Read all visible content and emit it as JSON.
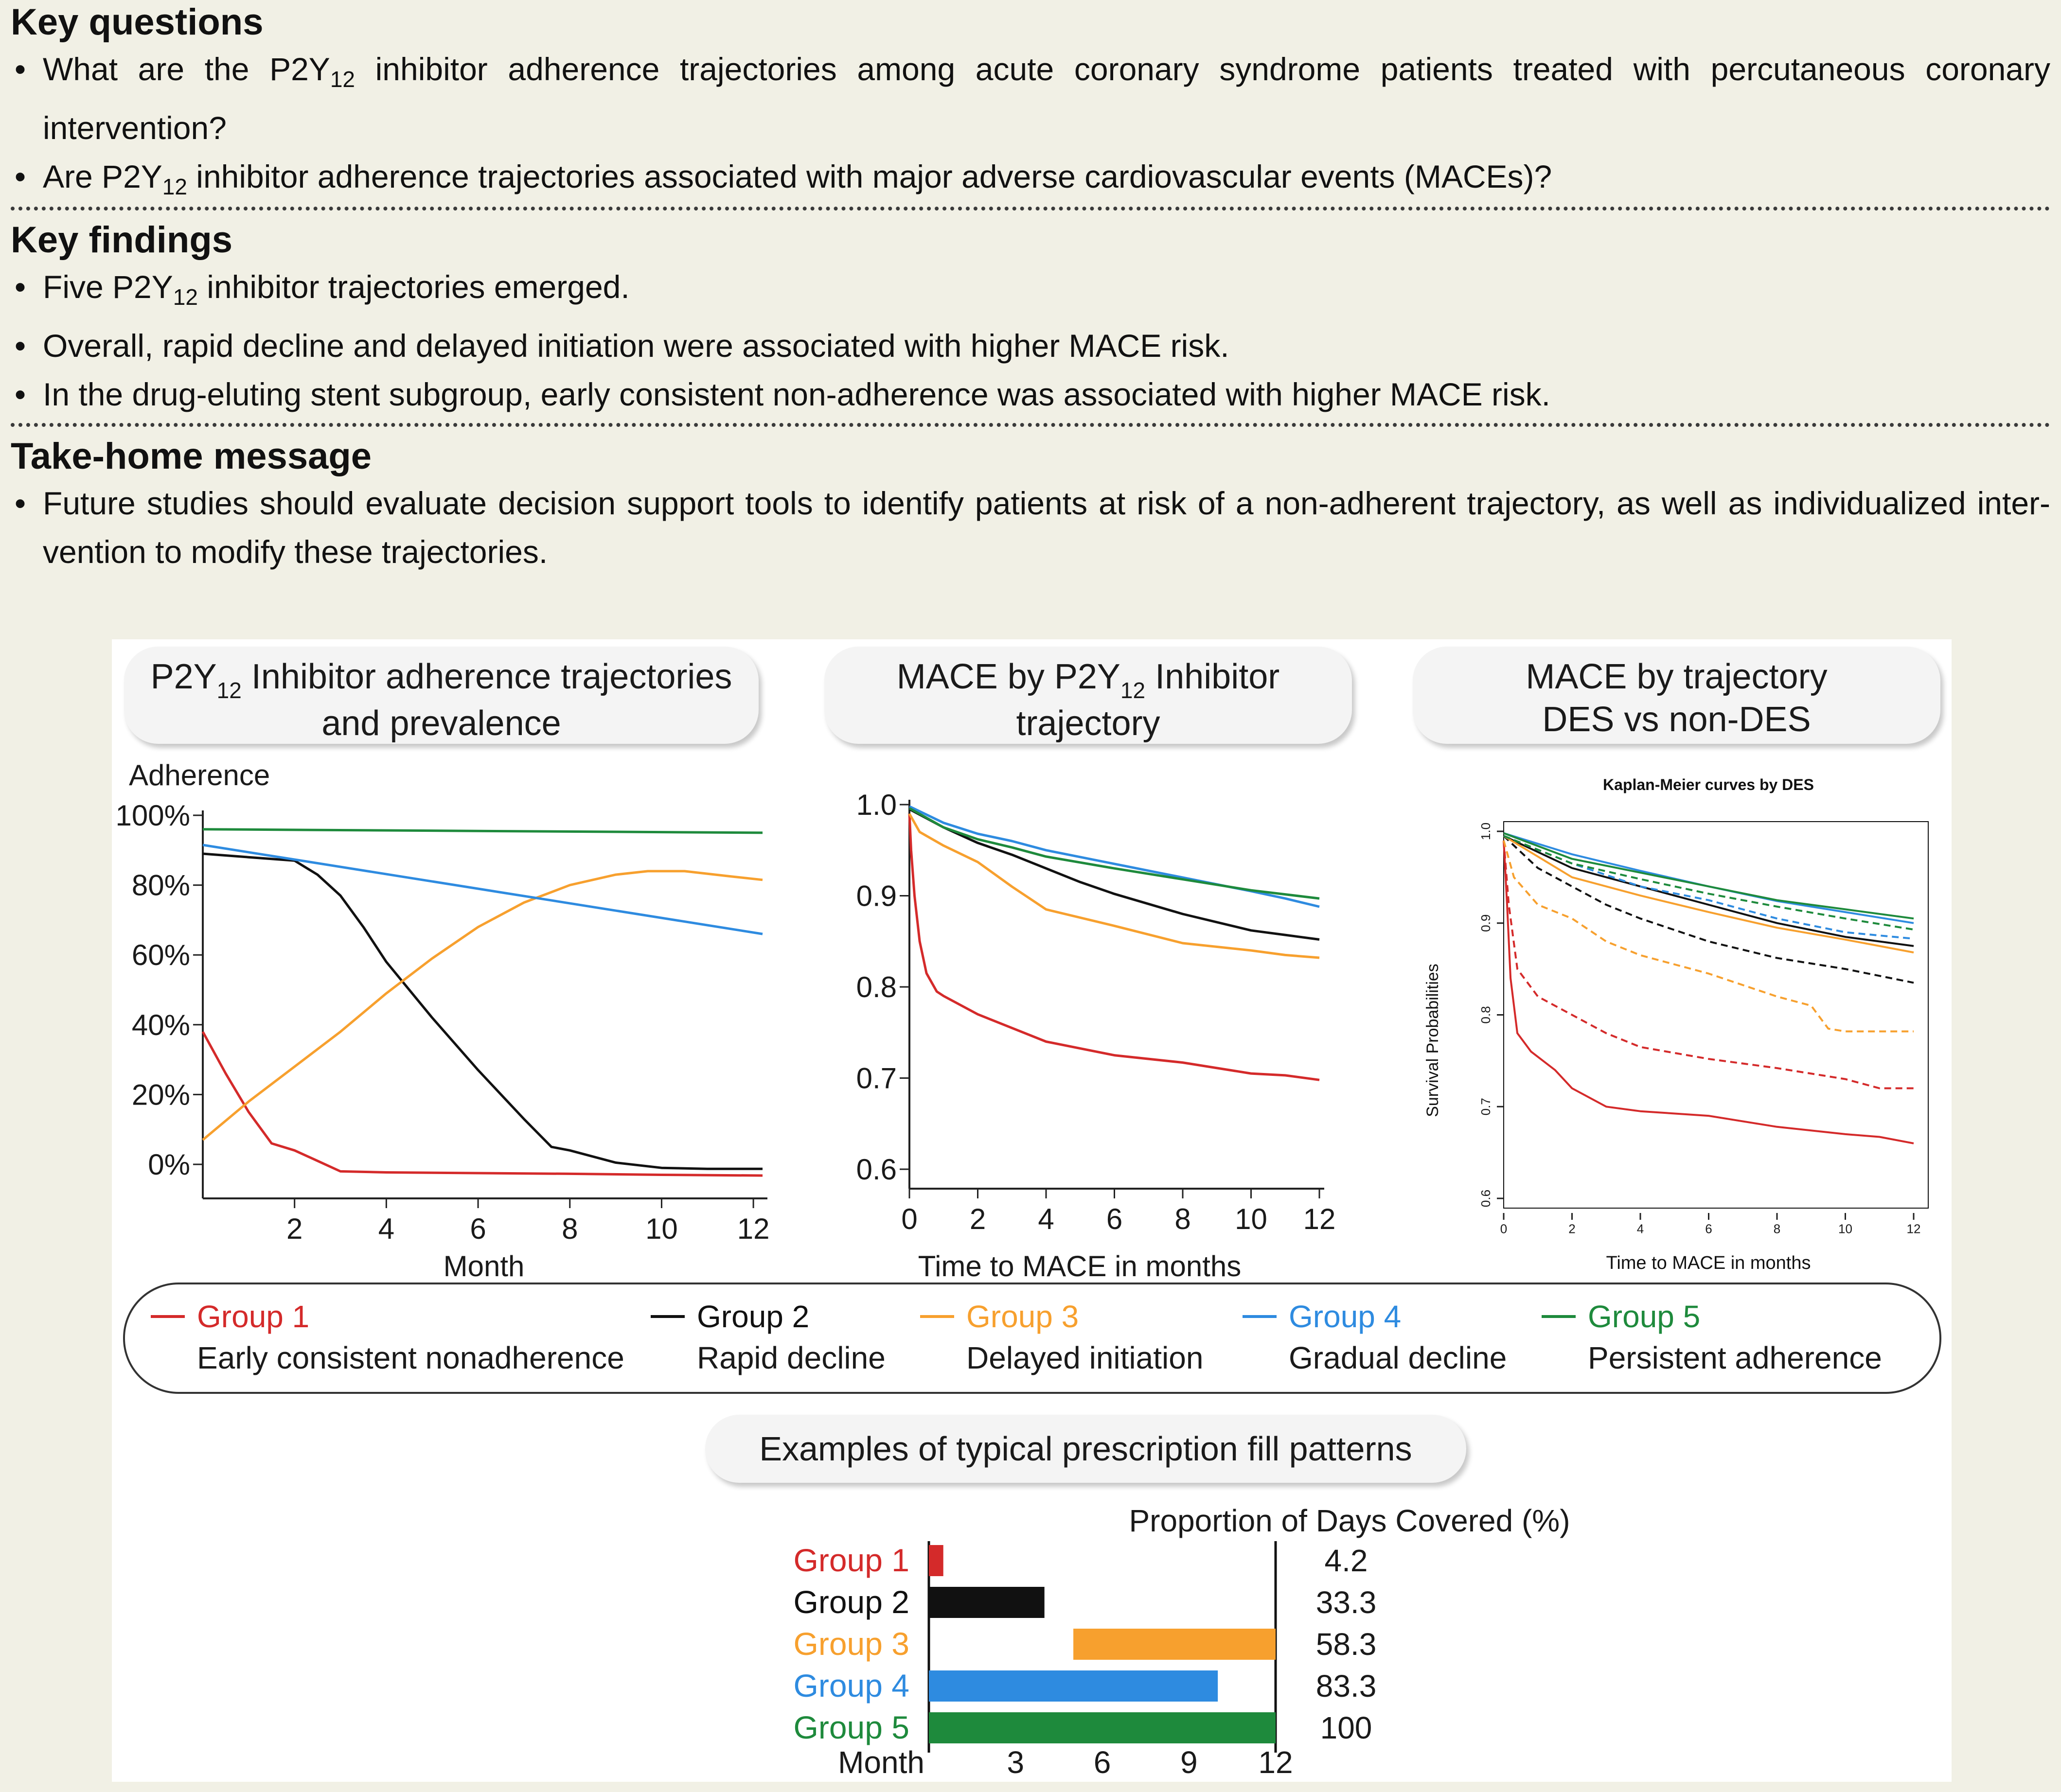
{
  "summary": {
    "key_questions": {
      "title": "Key questions",
      "bullets": [
        {
          "pre": "What are the P2Y",
          "sub": "12",
          "post": " inhibitor adherence trajectories among acute coronary syndrome patients treated with percutaneous coronary intervention?"
        },
        {
          "pre": "Are P2Y",
          "sub": "12",
          "post": " inhibitor adherence trajectories associated with major adverse cardiovascular events (MACEs)?"
        }
      ]
    },
    "key_findings": {
      "title": "Key findings",
      "bullets": [
        {
          "pre": "Five P2Y",
          "sub": "12",
          "post": " inhibitor trajectories emerged."
        },
        {
          "pre": "Overall, rapid decline and delayed initiation were associated with higher MACE risk.",
          "sub": "",
          "post": ""
        },
        {
          "pre": "In the drug-eluting stent subgroup, early consistent non-adherence was associated with higher MACE risk.",
          "sub": "",
          "post": ""
        }
      ]
    },
    "take_home": {
      "title": "Take-home message",
      "bullets": [
        {
          "pre": "Future studies should evaluate decision support tools to identify patients at risk of a non-adherent trajectory, as well as individualized inter-vention to modify these trajectories.",
          "sub": "",
          "post": ""
        }
      ]
    }
  },
  "panels": {
    "p1": {
      "pre": "P2Y",
      "sub": "12",
      "line1_post": " Inhibitor adherence trajectories",
      "line2": "and prevalence"
    },
    "p2": {
      "pre": "MACE by P2Y",
      "sub": "12",
      "line1_post": " Inhibitor",
      "line2": "trajectory"
    },
    "p3": {
      "line1": "MACE by trajectory",
      "line2": "DES vs non-DES"
    },
    "fill_title": "Examples of typical prescription fill patterns"
  },
  "colors": {
    "g1": "#d42a2a",
    "g2": "#111111",
    "g3": "#f7a02e",
    "g4": "#2e8be0",
    "g5": "#1e8a3c"
  },
  "legend": [
    {
      "group": "Group 1",
      "desc": "Early consistent nonadherence",
      "color": "#d42a2a"
    },
    {
      "group": "Group 2",
      "desc": "Rapid decline",
      "color": "#111111"
    },
    {
      "group": "Group 3",
      "desc": "Delayed initiation",
      "color": "#f7a02e"
    },
    {
      "group": "Group 4",
      "desc": "Gradual decline",
      "color": "#2e8be0"
    },
    {
      "group": "Group 5",
      "desc": "Persistent adherence",
      "color": "#1e8a3c"
    }
  ],
  "chart_data": [
    {
      "type": "line",
      "ylabel": "Adherence",
      "xlabel": "Month",
      "xlim": [
        0,
        12.2
      ],
      "ylim": [
        0,
        100
      ],
      "xticks": [
        2,
        4,
        6,
        8,
        10,
        12
      ],
      "yticks": [
        0,
        20,
        40,
        60,
        80,
        100
      ],
      "ytick_labels": [
        "0%",
        "20%",
        "40%",
        "60%",
        "80%",
        "100%"
      ],
      "series": [
        {
          "name": "Group 1",
          "color": "#d42a2a",
          "points": [
            [
              0,
              38
            ],
            [
              0.5,
              26
            ],
            [
              1,
              15
            ],
            [
              1.5,
              6
            ],
            [
              2,
              4
            ],
            [
              2.5,
              1
            ],
            [
              3,
              -2
            ],
            [
              4,
              -2.3
            ],
            [
              6,
              -2.5
            ],
            [
              8,
              -2.7
            ],
            [
              10,
              -3
            ],
            [
              12.2,
              -3.2
            ]
          ]
        },
        {
          "name": "Group 2",
          "color": "#111111",
          "points": [
            [
              0,
              89
            ],
            [
              1,
              88
            ],
            [
              2,
              87
            ],
            [
              2.5,
              83
            ],
            [
              3,
              77
            ],
            [
              3.5,
              68
            ],
            [
              4,
              58
            ],
            [
              5,
              42
            ],
            [
              6,
              27
            ],
            [
              7,
              13
            ],
            [
              7.6,
              5
            ],
            [
              8,
              4
            ],
            [
              9,
              0.5
            ],
            [
              10,
              -1
            ],
            [
              11,
              -1.3
            ],
            [
              12.2,
              -1.3
            ]
          ]
        },
        {
          "name": "Group 3",
          "color": "#f7a02e",
          "points": [
            [
              0,
              7
            ],
            [
              1,
              18
            ],
            [
              2,
              28
            ],
            [
              3,
              38
            ],
            [
              4,
              49
            ],
            [
              5,
              59
            ],
            [
              6,
              68
            ],
            [
              7,
              75
            ],
            [
              8,
              80
            ],
            [
              9,
              83
            ],
            [
              9.7,
              84
            ],
            [
              10.5,
              84
            ],
            [
              11.5,
              82.5
            ],
            [
              12.2,
              81.5
            ]
          ]
        },
        {
          "name": "Group 4",
          "color": "#2e8be0",
          "points": [
            [
              0,
              91.5
            ],
            [
              12.2,
              66
            ]
          ]
        },
        {
          "name": "Group 5",
          "color": "#1e8a3c",
          "points": [
            [
              0,
              96
            ],
            [
              12.2,
              95
            ]
          ]
        }
      ]
    },
    {
      "type": "line",
      "xlabel": "Time to MACE in months",
      "xlim": [
        0,
        12
      ],
      "ylim": [
        0.6,
        1.0
      ],
      "xticks": [
        0,
        2,
        4,
        6,
        8,
        10,
        12
      ],
      "yticks": [
        0.6,
        0.7,
        0.8,
        0.9,
        1.0
      ],
      "ytick_labels": [
        "0.6",
        "0.7",
        "0.8",
        "0.9",
        "1.0"
      ],
      "series": [
        {
          "name": "Group 1",
          "color": "#d42a2a",
          "points": [
            [
              0,
              0.99
            ],
            [
              0.05,
              0.95
            ],
            [
              0.15,
              0.9
            ],
            [
              0.3,
              0.85
            ],
            [
              0.5,
              0.815
            ],
            [
              0.8,
              0.795
            ],
            [
              1,
              0.79
            ],
            [
              2,
              0.77
            ],
            [
              3,
              0.755
            ],
            [
              4,
              0.74
            ],
            [
              6,
              0.725
            ],
            [
              8,
              0.717
            ],
            [
              10,
              0.705
            ],
            [
              11,
              0.703
            ],
            [
              12,
              0.698
            ]
          ]
        },
        {
          "name": "Group 2",
          "color": "#111111",
          "points": [
            [
              0,
              0.995
            ],
            [
              1,
              0.975
            ],
            [
              2,
              0.958
            ],
            [
              3,
              0.945
            ],
            [
              4,
              0.93
            ],
            [
              5,
              0.915
            ],
            [
              6,
              0.902
            ],
            [
              8,
              0.88
            ],
            [
              10,
              0.862
            ],
            [
              11,
              0.857
            ],
            [
              12,
              0.852
            ]
          ]
        },
        {
          "name": "Group 3",
          "color": "#f7a02e",
          "points": [
            [
              0,
              0.99
            ],
            [
              0.3,
              0.97
            ],
            [
              1,
              0.955
            ],
            [
              2,
              0.937
            ],
            [
              3,
              0.91
            ],
            [
              4,
              0.885
            ],
            [
              6,
              0.867
            ],
            [
              8,
              0.848
            ],
            [
              10,
              0.84
            ],
            [
              11,
              0.835
            ],
            [
              12,
              0.832
            ]
          ]
        },
        {
          "name": "Group 4",
          "color": "#2e8be0",
          "points": [
            [
              0,
              0.998
            ],
            [
              1,
              0.98
            ],
            [
              2,
              0.968
            ],
            [
              3,
              0.96
            ],
            [
              4,
              0.95
            ],
            [
              6,
              0.935
            ],
            [
              8,
              0.92
            ],
            [
              10,
              0.905
            ],
            [
              11,
              0.897
            ],
            [
              12,
              0.888
            ]
          ]
        },
        {
          "name": "Group 5",
          "color": "#1e8a3c",
          "points": [
            [
              0,
              0.996
            ],
            [
              1,
              0.975
            ],
            [
              2,
              0.962
            ],
            [
              3,
              0.953
            ],
            [
              4,
              0.943
            ],
            [
              6,
              0.93
            ],
            [
              8,
              0.918
            ],
            [
              10,
              0.906
            ],
            [
              12,
              0.897
            ]
          ]
        }
      ]
    },
    {
      "type": "line",
      "title": "Kaplan-Meier curves by DES",
      "xlabel": "Time to MACE in months",
      "ylabel": "Survival Probabilities",
      "xlim": [
        0,
        12
      ],
      "ylim": [
        0.6,
        1.0
      ],
      "xticks": [
        0,
        2,
        4,
        6,
        8,
        10,
        12
      ],
      "yticks": [
        0.6,
        0.7,
        0.8,
        0.9,
        1.0
      ],
      "ytick_labels": [
        "0.6",
        "0.7",
        "0.8",
        "0.9",
        "1.0"
      ],
      "series": [
        {
          "color": "#d42a2a",
          "dashed": false,
          "points": [
            [
              0,
              0.99
            ],
            [
              0.1,
              0.92
            ],
            [
              0.2,
              0.84
            ],
            [
              0.4,
              0.78
            ],
            [
              0.8,
              0.76
            ],
            [
              1.5,
              0.74
            ],
            [
              2,
              0.72
            ],
            [
              3,
              0.7
            ],
            [
              4,
              0.695
            ],
            [
              6,
              0.69
            ],
            [
              8,
              0.678
            ],
            [
              10,
              0.67
            ],
            [
              11,
              0.667
            ],
            [
              12,
              0.66
            ]
          ]
        },
        {
          "color": "#d42a2a",
          "dashed": true,
          "points": [
            [
              0,
              0.99
            ],
            [
              0.15,
              0.92
            ],
            [
              0.4,
              0.85
            ],
            [
              1,
              0.82
            ],
            [
              2,
              0.8
            ],
            [
              3,
              0.78
            ],
            [
              4,
              0.765
            ],
            [
              6,
              0.752
            ],
            [
              8,
              0.742
            ],
            [
              10,
              0.73
            ],
            [
              11,
              0.72
            ],
            [
              12,
              0.72
            ]
          ]
        },
        {
          "color": "#111111",
          "dashed": false,
          "points": [
            [
              0,
              0.995
            ],
            [
              2,
              0.96
            ],
            [
              4,
              0.94
            ],
            [
              6,
              0.92
            ],
            [
              8,
              0.9
            ],
            [
              10,
              0.885
            ],
            [
              11,
              0.88
            ],
            [
              12,
              0.875
            ]
          ]
        },
        {
          "color": "#111111",
          "dashed": true,
          "points": [
            [
              0,
              0.995
            ],
            [
              1,
              0.96
            ],
            [
              2,
              0.94
            ],
            [
              3,
              0.92
            ],
            [
              4,
              0.905
            ],
            [
              6,
              0.88
            ],
            [
              8,
              0.862
            ],
            [
              10,
              0.85
            ],
            [
              12,
              0.835
            ]
          ]
        },
        {
          "color": "#f7a02e",
          "dashed": false,
          "points": [
            [
              0,
              0.995
            ],
            [
              2,
              0.95
            ],
            [
              4,
              0.93
            ],
            [
              6,
              0.912
            ],
            [
              8,
              0.895
            ],
            [
              10,
              0.882
            ],
            [
              11,
              0.875
            ],
            [
              12,
              0.868
            ]
          ]
        },
        {
          "color": "#f7a02e",
          "dashed": true,
          "points": [
            [
              0,
              0.99
            ],
            [
              0.3,
              0.95
            ],
            [
              1,
              0.92
            ],
            [
              2,
              0.905
            ],
            [
              3,
              0.88
            ],
            [
              4,
              0.865
            ],
            [
              6,
              0.845
            ],
            [
              8,
              0.82
            ],
            [
              9,
              0.81
            ],
            [
              9.5,
              0.785
            ],
            [
              10,
              0.782
            ],
            [
              12,
              0.782
            ]
          ]
        },
        {
          "color": "#2e8be0",
          "dashed": false,
          "points": [
            [
              0,
              0.998
            ],
            [
              2,
              0.975
            ],
            [
              4,
              0.957
            ],
            [
              6,
              0.94
            ],
            [
              8,
              0.924
            ],
            [
              10,
              0.912
            ],
            [
              12,
              0.9
            ]
          ]
        },
        {
          "color": "#2e8be0",
          "dashed": true,
          "points": [
            [
              0,
              0.995
            ],
            [
              2,
              0.965
            ],
            [
              4,
              0.94
            ],
            [
              6,
              0.925
            ],
            [
              8,
              0.905
            ],
            [
              10,
              0.89
            ],
            [
              12,
              0.883
            ]
          ]
        },
        {
          "color": "#1e8a3c",
          "dashed": false,
          "points": [
            [
              0,
              0.998
            ],
            [
              2,
              0.97
            ],
            [
              4,
              0.955
            ],
            [
              6,
              0.94
            ],
            [
              8,
              0.925
            ],
            [
              10,
              0.915
            ],
            [
              12,
              0.905
            ]
          ]
        },
        {
          "color": "#1e8a3c",
          "dashed": true,
          "points": [
            [
              0,
              0.995
            ],
            [
              2,
              0.965
            ],
            [
              4,
              0.948
            ],
            [
              6,
              0.932
            ],
            [
              8,
              0.918
            ],
            [
              10,
              0.905
            ],
            [
              12,
              0.893
            ]
          ]
        }
      ]
    },
    {
      "type": "bar",
      "title": "Proportion of Days Covered (%)",
      "xlabel": "Month",
      "xlim": [
        0,
        12
      ],
      "xticks": [
        3,
        6,
        9,
        12
      ],
      "categories": [
        "Group 1",
        "Group 2",
        "Group 3",
        "Group 4",
        "Group 5"
      ],
      "colors": [
        "#d42a2a",
        "#111111",
        "#f7a02e",
        "#2e8be0",
        "#1e8a3c"
      ],
      "bar_start_month": [
        0,
        0,
        5,
        0,
        0
      ],
      "bar_end_month": [
        0.5,
        4,
        12,
        10,
        12
      ],
      "values": [
        4.2,
        33.3,
        58.3,
        83.3,
        100
      ],
      "value_labels": [
        "4.2",
        "33.3",
        "58.3",
        "83.3",
        "100"
      ]
    }
  ]
}
